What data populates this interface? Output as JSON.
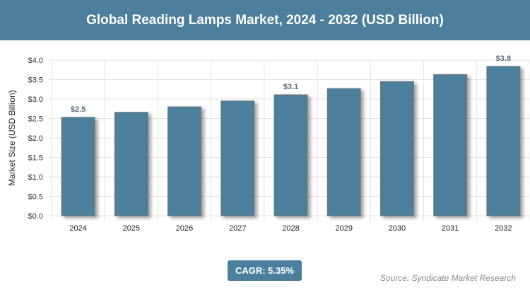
{
  "header": {
    "title": "Global Reading Lamps Market, 2024 - 2032 (USD Billion)"
  },
  "chart_data": {
    "type": "bar",
    "title": "Global Reading Lamps Market, 2024 - 2032 (USD Billion)",
    "xlabel": "",
    "ylabel": "Market Size (USD Billion)",
    "categories": [
      "2024",
      "2025",
      "2026",
      "2027",
      "2028",
      "2029",
      "2030",
      "2031",
      "2032"
    ],
    "values": [
      2.53,
      2.66,
      2.8,
      2.95,
      3.11,
      3.27,
      3.45,
      3.63,
      3.84
    ],
    "data_labels": {
      "0": "$2.5",
      "4": "$3.1",
      "8": "$3.8"
    },
    "ylim": [
      0,
      4
    ],
    "yticks": [
      "$0.0",
      "$0.5",
      "$1.0",
      "$1.5",
      "$2.0",
      "$2.5",
      "$3.0",
      "$3.5",
      "$4.0"
    ],
    "grid": true,
    "bar_color": "#4b7f9c"
  },
  "cagr": "CAGR: 5.35%",
  "source": "Source: Syndicate Market Research"
}
